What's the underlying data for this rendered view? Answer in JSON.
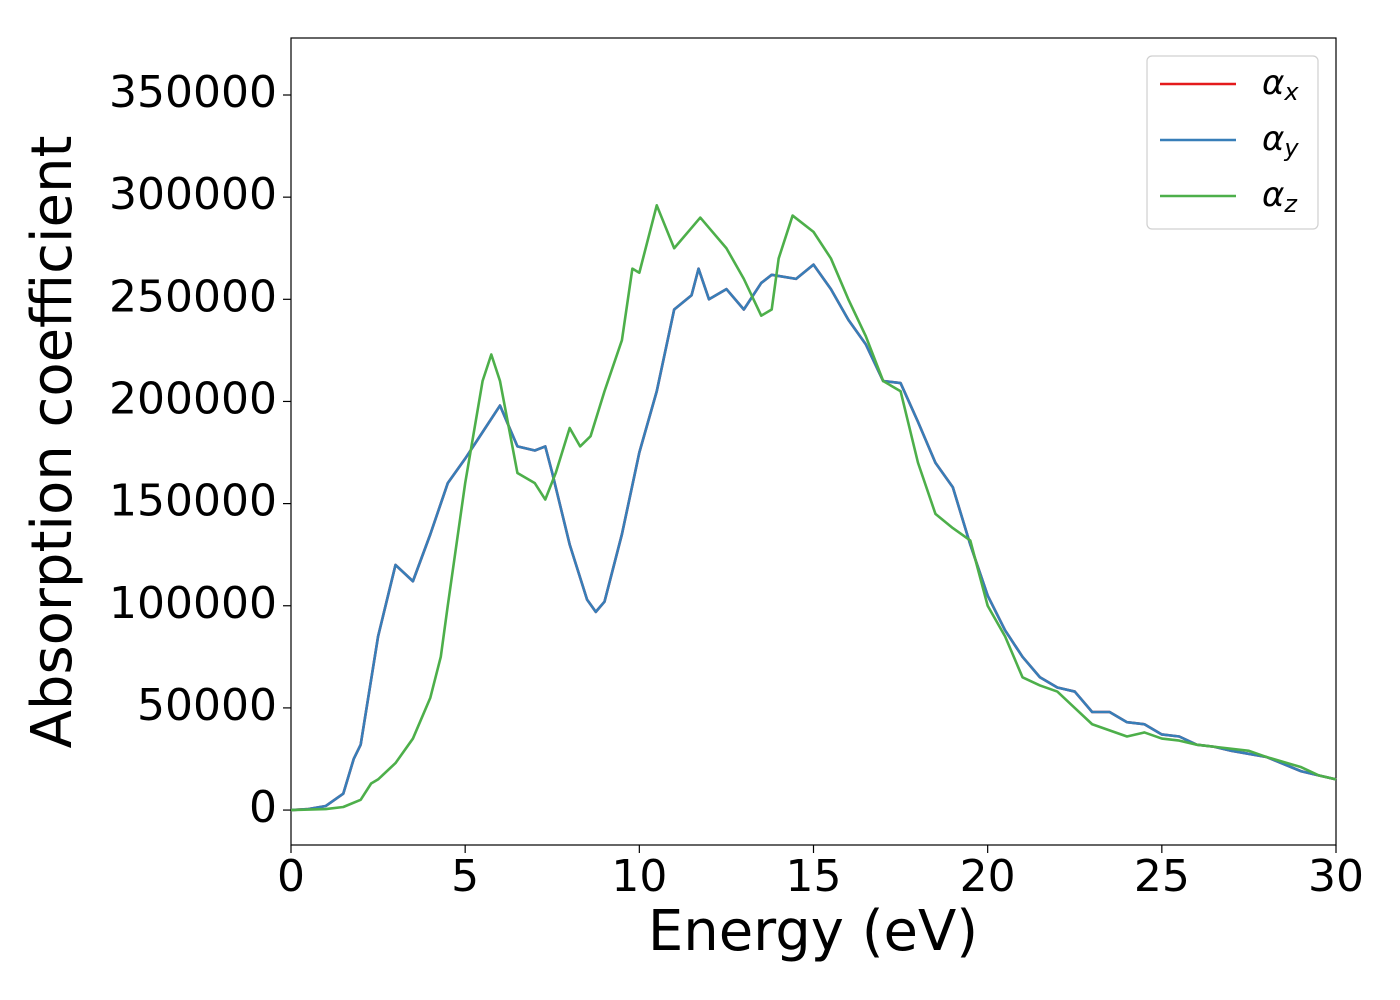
{
  "chart_data": {
    "type": "line",
    "xlabel": "Energy (eV)",
    "ylabel": "Absorption coefficient",
    "xlim": [
      0,
      30
    ],
    "ylim": [
      -17100,
      377900
    ],
    "xticks": [
      0,
      5,
      10,
      15,
      20,
      25,
      30
    ],
    "yticks": [
      0,
      50000,
      100000,
      150000,
      200000,
      250000,
      300000,
      350000
    ],
    "legend": "upper right",
    "series": [
      {
        "name": "αx",
        "color": "#e41a1c",
        "x": [
          0,
          0.5,
          1,
          1.5,
          1.8,
          2,
          2.5,
          3,
          3.5,
          4,
          4.5,
          5,
          5.5,
          6,
          6.5,
          7,
          7.3,
          7.5,
          8,
          8.5,
          8.75,
          9,
          9.5,
          10,
          10.5,
          11,
          11.5,
          11.7,
          12,
          12.5,
          13,
          13.5,
          13.8,
          14.5,
          15,
          15.5,
          16,
          16.5,
          17,
          17.5,
          18,
          18.5,
          19,
          19.5,
          20,
          20.5,
          21,
          21.5,
          22,
          22.5,
          23,
          23.5,
          24,
          24.5,
          25,
          25.5,
          26,
          26.5,
          27,
          28,
          29,
          29.5,
          30
        ],
        "values": [
          0,
          500,
          2000,
          8000,
          25000,
          32000,
          85000,
          120000,
          112000,
          135000,
          160000,
          172000,
          185000,
          198000,
          178000,
          176000,
          178000,
          165000,
          130000,
          103000,
          97000,
          102000,
          135000,
          175000,
          205000,
          245000,
          252000,
          265000,
          250000,
          255000,
          245000,
          258000,
          262000,
          260000,
          267000,
          255000,
          240000,
          228000,
          210000,
          209000,
          190000,
          170000,
          158000,
          130000,
          105000,
          88000,
          75000,
          65000,
          60000,
          58000,
          48000,
          48000,
          43000,
          42000,
          37000,
          36000,
          32000,
          31000,
          29000,
          26000,
          19000,
          17000,
          15000
        ]
      },
      {
        "name": "αy",
        "color": "#377eb8",
        "x": [
          0,
          0.5,
          1,
          1.5,
          1.8,
          2,
          2.5,
          3,
          3.5,
          4,
          4.5,
          5,
          5.5,
          6,
          6.5,
          7,
          7.3,
          7.5,
          8,
          8.5,
          8.75,
          9,
          9.5,
          10,
          10.5,
          11,
          11.5,
          11.7,
          12,
          12.5,
          13,
          13.5,
          13.8,
          14.5,
          15,
          15.5,
          16,
          16.5,
          17,
          17.5,
          18,
          18.5,
          19,
          19.5,
          20,
          20.5,
          21,
          21.5,
          22,
          22.5,
          23,
          23.5,
          24,
          24.5,
          25,
          25.5,
          26,
          26.5,
          27,
          28,
          29,
          29.5,
          30
        ],
        "values": [
          0,
          500,
          2000,
          8000,
          25000,
          32000,
          85000,
          120000,
          112000,
          135000,
          160000,
          172000,
          185000,
          198000,
          178000,
          176000,
          178000,
          165000,
          130000,
          103000,
          97000,
          102000,
          135000,
          175000,
          205000,
          245000,
          252000,
          265000,
          250000,
          255000,
          245000,
          258000,
          262000,
          260000,
          267000,
          255000,
          240000,
          228000,
          210000,
          209000,
          190000,
          170000,
          158000,
          130000,
          105000,
          88000,
          75000,
          65000,
          60000,
          58000,
          48000,
          48000,
          43000,
          42000,
          37000,
          36000,
          32000,
          31000,
          29000,
          26000,
          19000,
          17000,
          15000
        ]
      },
      {
        "name": "αz",
        "color": "#4daf4a",
        "x": [
          0,
          1,
          1.5,
          2,
          2.3,
          2.5,
          3,
          3.5,
          4,
          4.3,
          4.5,
          5,
          5.5,
          5.75,
          6,
          6.5,
          7,
          7.3,
          7.6,
          8,
          8.3,
          8.6,
          9,
          9.5,
          9.8,
          10,
          10.5,
          11,
          11.5,
          11.75,
          12,
          12.5,
          13,
          13.5,
          13.8,
          14,
          14.4,
          15,
          15.5,
          16,
          16.5,
          17,
          17.5,
          18,
          18.5,
          19,
          19.5,
          20,
          20.5,
          21,
          21.5,
          22,
          22.5,
          23,
          23.5,
          24,
          24.5,
          25,
          25.5,
          26,
          26.5,
          27,
          27.5,
          28,
          29,
          29.5,
          30
        ],
        "values": [
          0,
          500,
          1500,
          5000,
          13000,
          15000,
          23000,
          35000,
          55000,
          75000,
          100000,
          160000,
          210000,
          223000,
          210000,
          165000,
          160000,
          152000,
          165000,
          187000,
          178000,
          183000,
          205000,
          230000,
          265000,
          263000,
          296000,
          275000,
          285000,
          290000,
          285000,
          275000,
          260000,
          242000,
          245000,
          270000,
          291000,
          283000,
          270000,
          250000,
          232000,
          210000,
          205000,
          170000,
          145000,
          138000,
          132000,
          100000,
          85000,
          65000,
          61000,
          58000,
          50000,
          42000,
          39000,
          36000,
          38000,
          35000,
          34000,
          32000,
          31000,
          30000,
          29000,
          26000,
          21000,
          17000,
          15000
        ]
      }
    ]
  }
}
